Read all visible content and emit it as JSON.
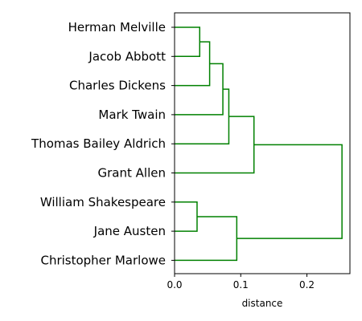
{
  "chart_data": {
    "type": "dendrogram",
    "orientation": "left",
    "xlabel": "distance",
    "xlim": [
      0.0,
      0.265
    ],
    "xticks": [
      0.0,
      0.1,
      0.2
    ],
    "xtick_labels": [
      "0.0",
      "0.1",
      "0.2"
    ],
    "grid": false,
    "line_color": "#008000",
    "leaves": [
      "Herman Melville",
      "Jacob Abbott",
      "Charles Dickens",
      "Mark Twain ",
      "Thomas Bailey Aldrich",
      "Grant Allen",
      "William Shakespeare",
      "Jane Austen",
      "Christopher Marlowe"
    ],
    "merges": [
      {
        "left": "Herman Melville",
        "right": "Jacob Abbott",
        "distance": 0.038
      },
      {
        "left": "(Herman Melville, Jacob Abbott)",
        "right": "Charles Dickens",
        "distance": 0.053
      },
      {
        "left": "(Herman Melville, Jacob Abbott, Charles Dickens)",
        "right": "Mark Twain",
        "distance": 0.073
      },
      {
        "left": "(Herman Melville, Jacob Abbott, Charles Dickens, Mark Twain)",
        "right": "Thomas Bailey Aldrich",
        "distance": 0.082
      },
      {
        "left": "(Herman Melville, Jacob Abbott, Charles Dickens, Mark Twain, Thomas Bailey Aldrich)",
        "right": "Grant Allen",
        "distance": 0.12
      },
      {
        "left": "William Shakespeare",
        "right": "Jane Austen",
        "distance": 0.034
      },
      {
        "left": "(William Shakespeare, Jane Austen)",
        "right": "Christopher Marlowe",
        "distance": 0.094
      },
      {
        "left": "(Herman Melville, Jacob Abbott, Charles Dickens, Mark Twain, Thomas Bailey Aldrich, Grant Allen)",
        "right": "(William Shakespeare, Jane Austen, Christopher Marlowe)",
        "distance": 0.253
      }
    ]
  }
}
